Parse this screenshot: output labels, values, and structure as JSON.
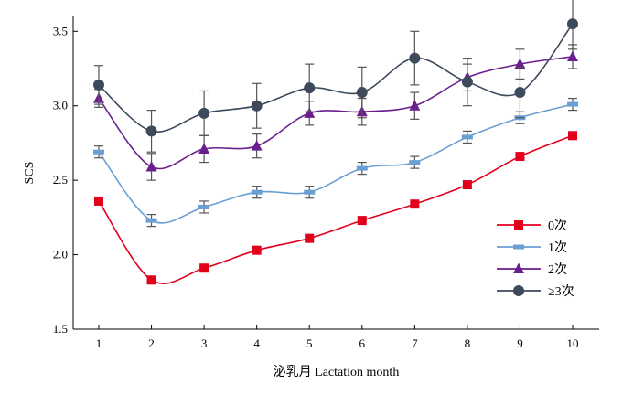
{
  "chart_data": {
    "type": "line",
    "xlabel": "泌乳月 Lactation month",
    "ylabel": "SCS",
    "x": [
      1,
      2,
      3,
      4,
      5,
      6,
      7,
      8,
      9,
      10
    ],
    "xticks": [
      "1",
      "2",
      "3",
      "4",
      "5",
      "6",
      "7",
      "8",
      "9",
      "10"
    ],
    "ylim": [
      1.5,
      3.6
    ],
    "yticks": [
      "1.5",
      "2.0",
      "2.5",
      "3.0",
      "3.5"
    ],
    "grid": false,
    "legend_position": "right",
    "series": [
      {
        "name": "0次",
        "color": "#e3001b",
        "marker": "square",
        "values": [
          2.36,
          1.83,
          1.91,
          2.03,
          2.11,
          2.23,
          2.34,
          2.47,
          2.66,
          2.8
        ],
        "error": [
          0.02,
          0.02,
          0.02,
          0.02,
          0.02,
          0.02,
          0.02,
          0.02,
          0.02,
          0.02
        ]
      },
      {
        "name": "1次",
        "color": "#6a9fd4",
        "marker": "dash",
        "values": [
          2.69,
          2.23,
          2.32,
          2.42,
          2.42,
          2.58,
          2.62,
          2.79,
          2.92,
          3.01
        ],
        "error": [
          0.04,
          0.04,
          0.04,
          0.04,
          0.04,
          0.04,
          0.04,
          0.04,
          0.04,
          0.04
        ]
      },
      {
        "name": "2次",
        "color": "#6a1f8c",
        "marker": "triangle",
        "values": [
          3.05,
          2.59,
          2.71,
          2.73,
          2.95,
          2.96,
          3.0,
          3.19,
          3.28,
          3.33
        ],
        "error": [
          0.06,
          0.09,
          0.09,
          0.08,
          0.08,
          0.09,
          0.09,
          0.09,
          0.1,
          0.08
        ]
      },
      {
        "name": "≥3次",
        "color": "#3d4a5c",
        "marker": "circle",
        "values": [
          3.14,
          2.83,
          2.95,
          3.0,
          3.12,
          3.09,
          3.32,
          3.16,
          3.09,
          3.55
        ],
        "error": [
          0.13,
          0.14,
          0.15,
          0.15,
          0.16,
          0.17,
          0.18,
          0.16,
          0.17,
          0.17
        ]
      }
    ]
  }
}
